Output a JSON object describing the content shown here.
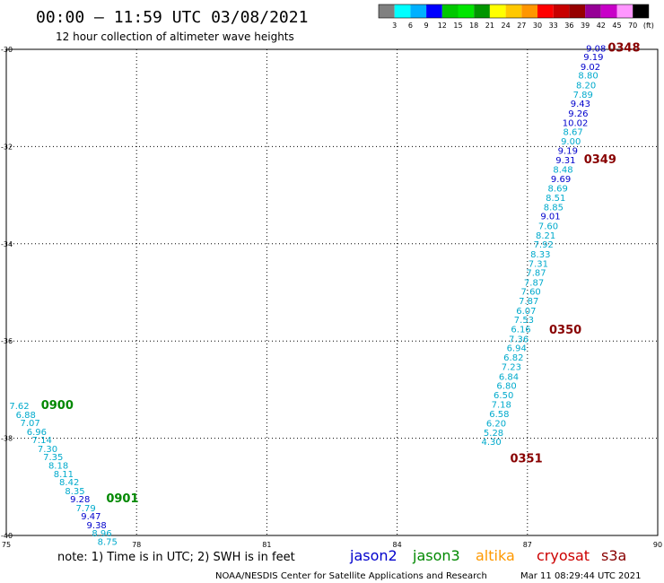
{
  "header": {
    "title": "00:00 – 11:59 UTC 03/08/2021",
    "subtitle": "12 hour collection of altimeter wave heights"
  },
  "colorbar": {
    "colors": [
      "#808080",
      "#00ffff",
      "#00b0ff",
      "#0000ff",
      "#00c800",
      "#00e600",
      "#009600",
      "#ffff00",
      "#ffc800",
      "#ff9600",
      "#ff0000",
      "#c80000",
      "#960000",
      "#960096",
      "#c800c8",
      "#ff96ff",
      "#000000"
    ],
    "labels": [
      "3",
      "6",
      "9",
      "12",
      "15",
      "18",
      "21",
      "24",
      "27",
      "30",
      "33",
      "36",
      "39",
      "42",
      "45",
      "70",
      "(ft)"
    ]
  },
  "footer": {
    "note": "note:  1) Time is in UTC; 2) SWH is in feet",
    "satellites": [
      {
        "name": "jason2",
        "color": "#0000cc"
      },
      {
        "name": "jason3",
        "color": "#008800"
      },
      {
        "name": "altika",
        "color": "#ff9900"
      },
      {
        "name": "cryosat",
        "color": "#cc0000"
      },
      {
        "name": "s3a",
        "color": "#880000"
      }
    ],
    "credit_left": "NOAA/NESDIS Center for Satellite Applications and Research",
    "credit_right": "Mar 11 08:29:44 UTC 2021"
  },
  "chart_data": {
    "type": "scatter",
    "title": "00:00 – 11:59 UTC 03/08/2021",
    "subtitle": "12 hour collection of altimeter wave heights",
    "xlim": [
      75,
      90
    ],
    "ylim": [
      -40,
      -30
    ],
    "x_ticks": [
      75,
      78,
      81,
      84,
      87,
      90
    ],
    "y_ticks": [
      -30,
      -32,
      -34,
      -36,
      -38,
      -40
    ],
    "x_tick_labels": [
      "75",
      "78",
      "81",
      "84",
      "87",
      "90"
    ],
    "y_tick_labels": [
      "-30",
      "-32",
      "-34",
      "-36",
      "-38",
      "-40"
    ],
    "grid": true,
    "series": [
      {
        "name": "jason3",
        "color": "#008800",
        "points": [
          {
            "lon": 75.3,
            "lat": -37.4,
            "swh": "7.62",
            "color": "#00aacc"
          },
          {
            "lon": 75.45,
            "lat": -37.58,
            "swh": "6.88",
            "color": "#00aacc"
          },
          {
            "lon": 75.55,
            "lat": -37.75,
            "swh": "7.07",
            "color": "#00aacc"
          },
          {
            "lon": 75.7,
            "lat": -37.93,
            "swh": "6.96",
            "color": "#00aacc"
          },
          {
            "lon": 75.82,
            "lat": -38.1,
            "swh": "7.14",
            "color": "#00aacc"
          },
          {
            "lon": 75.95,
            "lat": -38.28,
            "swh": "7.30",
            "color": "#00aacc"
          },
          {
            "lon": 76.08,
            "lat": -38.45,
            "swh": "7.35",
            "color": "#00aacc"
          },
          {
            "lon": 76.2,
            "lat": -38.63,
            "swh": "8.18",
            "color": "#00aacc"
          },
          {
            "lon": 76.32,
            "lat": -38.8,
            "swh": "8.11",
            "color": "#00aacc"
          },
          {
            "lon": 76.45,
            "lat": -38.97,
            "swh": "8.42",
            "color": "#00aacc"
          },
          {
            "lon": 76.58,
            "lat": -39.15,
            "swh": "8.35",
            "color": "#00aacc"
          },
          {
            "lon": 76.7,
            "lat": -39.32,
            "swh": "9.28",
            "color": "#0000cc"
          },
          {
            "lon": 76.83,
            "lat": -39.5,
            "swh": "7.79",
            "color": "#00aacc"
          },
          {
            "lon": 76.95,
            "lat": -39.67,
            "swh": "9.47",
            "color": "#0000cc"
          },
          {
            "lon": 77.08,
            "lat": -39.85,
            "swh": "9.38",
            "color": "#0000cc"
          },
          {
            "lon": 77.2,
            "lat": -40.02,
            "swh": "8.96",
            "color": "#00aacc"
          },
          {
            "lon": 77.33,
            "lat": -40.19,
            "swh": "8.75",
            "color": "#00aacc"
          }
        ],
        "time_labels": [
          {
            "lon": 75.8,
            "lat": -37.4,
            "text": "0900"
          },
          {
            "lon": 77.3,
            "lat": -39.32,
            "text": "0901"
          }
        ]
      },
      {
        "name": "s3a",
        "color": "#880000",
        "points": [
          {
            "lon": 88.58,
            "lat": -30.05,
            "swh": "9.08",
            "color": "#0000cc"
          },
          {
            "lon": 88.52,
            "lat": -30.22,
            "swh": "9.19",
            "color": "#0000cc"
          },
          {
            "lon": 88.45,
            "lat": -30.42,
            "swh": "9.02",
            "color": "#0000cc"
          },
          {
            "lon": 88.4,
            "lat": -30.6,
            "swh": "8.80",
            "color": "#00aacc"
          },
          {
            "lon": 88.35,
            "lat": -30.8,
            "swh": "8.20",
            "color": "#00aacc"
          },
          {
            "lon": 88.28,
            "lat": -31.0,
            "swh": "7.89",
            "color": "#00aacc"
          },
          {
            "lon": 88.22,
            "lat": -31.18,
            "swh": "9.43",
            "color": "#0000cc"
          },
          {
            "lon": 88.17,
            "lat": -31.38,
            "swh": "9.26",
            "color": "#0000cc"
          },
          {
            "lon": 88.1,
            "lat": -31.58,
            "swh": "10.02",
            "color": "#0000cc"
          },
          {
            "lon": 88.05,
            "lat": -31.76,
            "swh": "8.67",
            "color": "#00aacc"
          },
          {
            "lon": 88.0,
            "lat": -31.96,
            "swh": "9.00",
            "color": "#00aacc"
          },
          {
            "lon": 87.93,
            "lat": -32.15,
            "swh": "9.19",
            "color": "#0000cc"
          },
          {
            "lon": 87.88,
            "lat": -32.34,
            "swh": "9.31",
            "color": "#0000cc"
          },
          {
            "lon": 87.82,
            "lat": -32.54,
            "swh": "8.48",
            "color": "#00aacc"
          },
          {
            "lon": 87.77,
            "lat": -32.73,
            "swh": "9.69",
            "color": "#0000cc"
          },
          {
            "lon": 87.7,
            "lat": -32.92,
            "swh": "8.69",
            "color": "#00aacc"
          },
          {
            "lon": 87.65,
            "lat": -33.12,
            "swh": "8.51",
            "color": "#00aacc"
          },
          {
            "lon": 87.6,
            "lat": -33.31,
            "swh": "8.85",
            "color": "#00aacc"
          },
          {
            "lon": 87.53,
            "lat": -33.5,
            "swh": "9.01",
            "color": "#0000cc"
          },
          {
            "lon": 87.48,
            "lat": -33.7,
            "swh": "7.60",
            "color": "#00aacc"
          },
          {
            "lon": 87.42,
            "lat": -33.89,
            "swh": "8.21",
            "color": "#00aacc"
          },
          {
            "lon": 87.37,
            "lat": -34.08,
            "swh": "7.92",
            "color": "#00aacc"
          },
          {
            "lon": 87.3,
            "lat": -34.28,
            "swh": "8.33",
            "color": "#00aacc"
          },
          {
            "lon": 87.25,
            "lat": -34.47,
            "swh": "7.31",
            "color": "#00aacc"
          },
          {
            "lon": 87.2,
            "lat": -34.66,
            "swh": "7.87",
            "color": "#00aacc"
          },
          {
            "lon": 87.15,
            "lat": -34.86,
            "swh": "7.87",
            "color": "#00aacc"
          },
          {
            "lon": 87.08,
            "lat": -35.05,
            "swh": "7.60",
            "color": "#00aacc"
          },
          {
            "lon": 87.03,
            "lat": -35.24,
            "swh": "7.87",
            "color": "#00aacc"
          },
          {
            "lon": 86.97,
            "lat": -35.44,
            "swh": "6.07",
            "color": "#00aacc"
          },
          {
            "lon": 86.92,
            "lat": -35.63,
            "swh": "7.53",
            "color": "#00aacc"
          },
          {
            "lon": 86.85,
            "lat": -35.82,
            "swh": "6.16",
            "color": "#00aacc"
          },
          {
            "lon": 86.8,
            "lat": -36.02,
            "swh": "7.36",
            "color": "#00aacc"
          },
          {
            "lon": 86.75,
            "lat": -36.21,
            "swh": "6.94",
            "color": "#00aacc"
          },
          {
            "lon": 86.68,
            "lat": -36.4,
            "swh": "6.82",
            "color": "#00aacc"
          },
          {
            "lon": 86.63,
            "lat": -36.6,
            "swh": "7.23",
            "color": "#00aacc"
          },
          {
            "lon": 86.57,
            "lat": -36.8,
            "swh": "6.84",
            "color": "#00aacc"
          },
          {
            "lon": 86.52,
            "lat": -36.98,
            "swh": "6.80",
            "color": "#00aacc"
          },
          {
            "lon": 86.45,
            "lat": -37.18,
            "swh": "6.50",
            "color": "#00aacc"
          },
          {
            "lon": 86.4,
            "lat": -37.37,
            "swh": "7.18",
            "color": "#00aacc"
          },
          {
            "lon": 86.35,
            "lat": -37.56,
            "swh": "6.58",
            "color": "#00aacc"
          },
          {
            "lon": 86.28,
            "lat": -37.76,
            "swh": "6.20",
            "color": "#00aacc"
          },
          {
            "lon": 86.22,
            "lat": -37.95,
            "swh": "5.28",
            "color": "#00aacc"
          },
          {
            "lon": 86.17,
            "lat": -38.14,
            "swh": "4.30",
            "color": "#00aacc"
          }
        ],
        "time_labels": [
          {
            "lon": 88.85,
            "lat": -30.05,
            "text": "0348"
          },
          {
            "lon": 88.3,
            "lat": -32.34,
            "text": "0349"
          },
          {
            "lon": 87.5,
            "lat": -35.85,
            "text": "0350"
          },
          {
            "lon": 86.6,
            "lat": -38.5,
            "text": "0351"
          }
        ]
      }
    ]
  }
}
